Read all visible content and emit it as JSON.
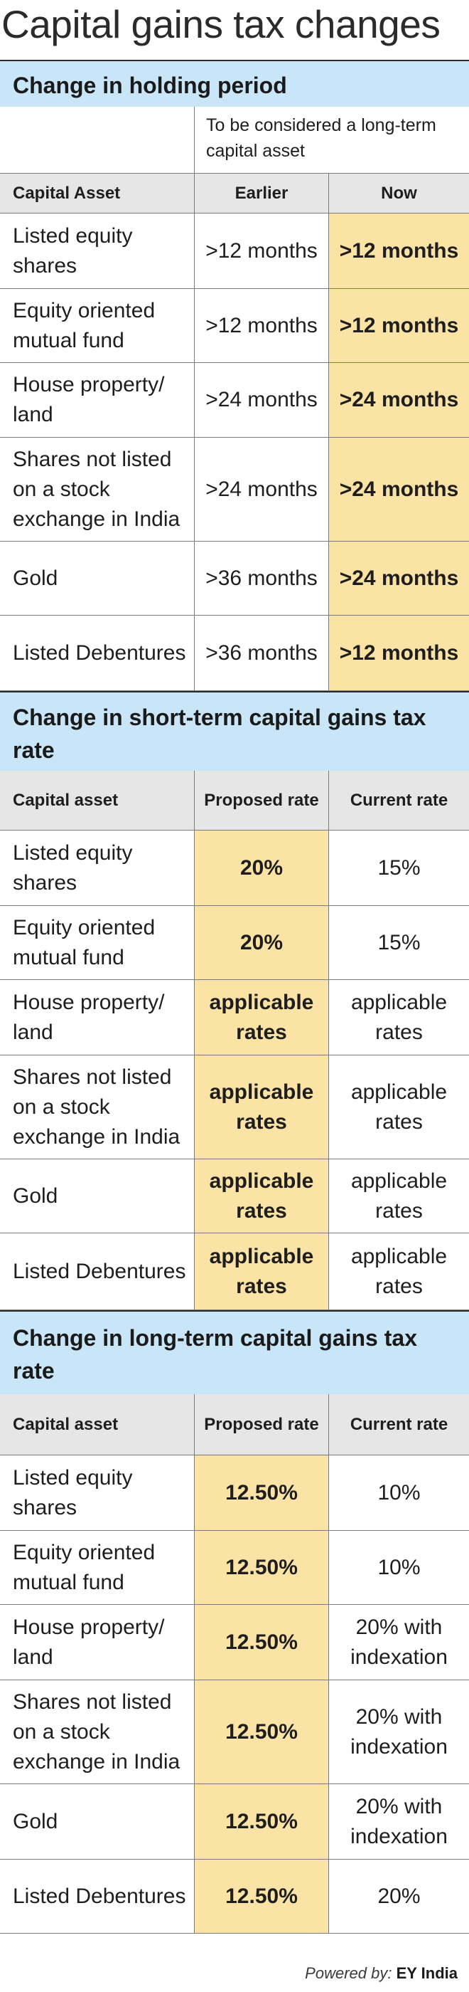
{
  "page": {
    "title": "Capital gains tax changes"
  },
  "holding": {
    "title": "Change in holding period",
    "note": "To be considered a long-term capital asset",
    "headers": {
      "asset": "Capital Asset",
      "earlier": "Earlier",
      "now": "Now"
    },
    "rows": [
      {
        "asset": "Listed equity shares",
        "earlier": ">12 months",
        "now": ">12 months"
      },
      {
        "asset": "Equity oriented mutual fund",
        "earlier": ">12 months",
        "now": ">12 months"
      },
      {
        "asset": "House property/ land",
        "earlier": ">24 months",
        "now": ">24 months"
      },
      {
        "asset": "Shares not listed on a stock exchange in India",
        "earlier": ">24 months",
        "now": ">24 months"
      },
      {
        "asset": "Gold",
        "earlier": ">36 months",
        "now": ">24 months"
      },
      {
        "asset": "Listed Debentures",
        "earlier": ">36 months",
        "now": ">12 months"
      }
    ]
  },
  "short_term": {
    "title": "Change in short-term capital gains tax rate",
    "headers": {
      "asset": "Capital asset",
      "proposed": "Proposed rate",
      "current": "Current  rate"
    },
    "rows": [
      {
        "asset": "Listed equity shares",
        "proposed": "20%",
        "current": "15%"
      },
      {
        "asset": "Equity oriented mutual fund",
        "proposed": "20%",
        "current": "15%"
      },
      {
        "asset": "House property/ land",
        "proposed": "applicable rates",
        "current": "applicable rates"
      },
      {
        "asset": "Shares not listed on a stock exchange in India",
        "proposed": "applicable rates",
        "current": "applicable rates"
      },
      {
        "asset": "Gold",
        "proposed": "applicable rates",
        "current": "applicable rates"
      },
      {
        "asset": "Listed Debentures",
        "proposed": "applicable rates",
        "current": "applicable rates"
      }
    ]
  },
  "long_term": {
    "title": "Change in long-term capital gains tax rate",
    "headers": {
      "asset": "Capital asset",
      "proposed": "Proposed rate",
      "current": "Current  rate"
    },
    "rows": [
      {
        "asset": "Listed equity shares",
        "proposed": "12.50%",
        "current": "10%"
      },
      {
        "asset": "Equity oriented mutual fund",
        "proposed": "12.50%",
        "current": "10%"
      },
      {
        "asset": "House property/ land",
        "proposed": "12.50%",
        "current": "20% with indexation"
      },
      {
        "asset": "Shares not listed on a stock exchange in India",
        "proposed": "12.50%",
        "current": "20% with indexation"
      },
      {
        "asset": "Gold",
        "proposed": "12.50%",
        "current": "20% with indexation"
      },
      {
        "asset": "Listed Debentures",
        "proposed": "12.50%",
        "current": "20%"
      }
    ]
  },
  "footer": {
    "prefix": "Powered by:",
    "source": "EY India"
  },
  "colors": {
    "section_bg": "#c9e5f8",
    "header_bg": "#e6e6e6",
    "highlight": "#fbe3a5"
  }
}
